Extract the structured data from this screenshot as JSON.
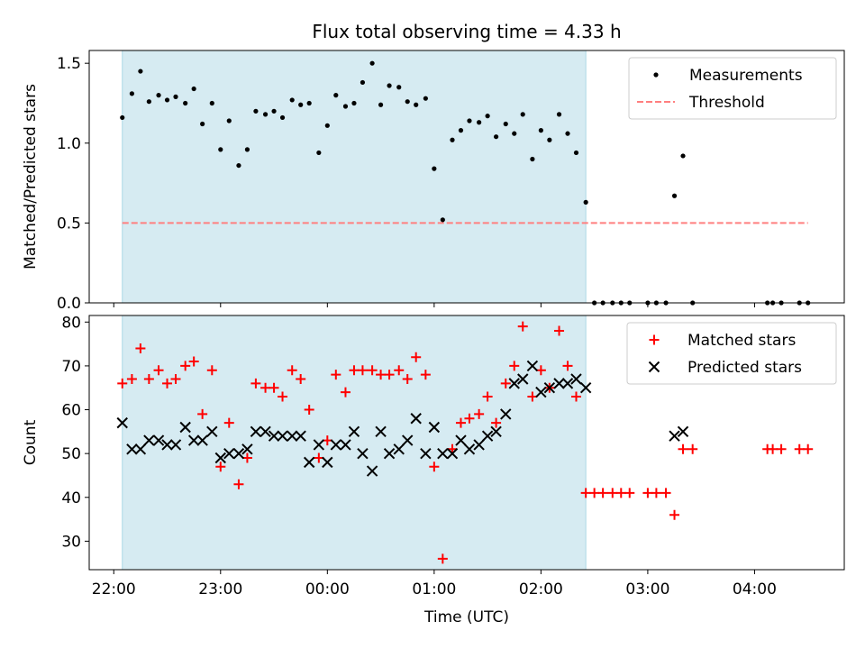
{
  "chart_data": {
    "title": "Flux total observing time = 4.33 h",
    "xlabel": "Time (UTC)",
    "x_ticks": [
      "22:00",
      "23:00",
      "00:00",
      "01:00",
      "02:00",
      "03:00",
      "04:00"
    ],
    "x_tick_hours": [
      22,
      23,
      24,
      25,
      26,
      27,
      28
    ],
    "xlim_hours": [
      21.77,
      28.84
    ],
    "shaded_interval_hours": [
      22.08,
      26.42
    ],
    "shade_color": "#add8e6",
    "panels": [
      {
        "type": "scatter",
        "ylabel": "Matched/Predicted stars",
        "ylim": [
          0,
          1.58
        ],
        "y_ticks": [
          0.0,
          0.5,
          1.0,
          1.5
        ],
        "y_tick_labels": [
          "0.0",
          "0.5",
          "1.0",
          "1.5"
        ],
        "legend_position": "top-right",
        "threshold": {
          "name": "Threshold",
          "value": 0.5,
          "x_range_hours": [
            22.08,
            28.5
          ],
          "color": "#ff7f7f",
          "style": "dashed"
        },
        "series": [
          {
            "name": "Measurements",
            "marker": "dot",
            "color": "#000000",
            "x_hours": [
              22.08,
              22.17,
              22.25,
              22.33,
              22.42,
              22.5,
              22.58,
              22.67,
              22.75,
              22.83,
              22.92,
              23.0,
              23.08,
              23.17,
              23.25,
              23.33,
              23.42,
              23.5,
              23.58,
              23.67,
              23.75,
              23.83,
              23.92,
              24.0,
              24.08,
              24.17,
              24.25,
              24.33,
              24.42,
              24.5,
              24.58,
              24.67,
              24.75,
              24.83,
              24.92,
              25.0,
              25.08,
              25.17,
              25.25,
              25.33,
              25.42,
              25.5,
              25.58,
              25.67,
              25.75,
              25.83,
              25.92,
              26.0,
              26.08,
              26.17,
              26.25,
              26.33,
              26.42,
              26.5,
              26.58,
              26.67,
              26.75,
              26.83,
              27.0,
              27.08,
              27.17,
              27.25,
              27.33,
              27.42,
              28.12,
              28.17,
              28.25,
              28.42,
              28.5
            ],
            "y": [
              1.16,
              1.31,
              1.45,
              1.26,
              1.3,
              1.27,
              1.29,
              1.25,
              1.34,
              1.12,
              1.25,
              0.96,
              1.14,
              0.86,
              0.96,
              1.2,
              1.18,
              1.2,
              1.16,
              1.27,
              1.24,
              1.25,
              0.94,
              1.11,
              1.3,
              1.23,
              1.25,
              1.38,
              1.5,
              1.24,
              1.36,
              1.35,
              1.26,
              1.24,
              1.28,
              0.84,
              0.52,
              1.02,
              1.08,
              1.14,
              1.13,
              1.17,
              1.04,
              1.12,
              1.06,
              1.18,
              0.9,
              1.08,
              1.02,
              1.18,
              1.06,
              0.94,
              0.63,
              0.0,
              0.0,
              0.0,
              0.0,
              0.0,
              0.0,
              0.0,
              0.0,
              0.67,
              0.92,
              0.0,
              0.0,
              0.0,
              0.0,
              0.0,
              0.0
            ]
          }
        ]
      },
      {
        "type": "scatter",
        "ylabel": "Count",
        "ylim": [
          23.5,
          81.5
        ],
        "y_ticks": [
          30,
          40,
          50,
          60,
          70,
          80
        ],
        "y_tick_labels": [
          "30",
          "40",
          "50",
          "60",
          "70",
          "80"
        ],
        "legend_position": "top-right",
        "series": [
          {
            "name": "Matched stars",
            "marker": "plus",
            "color": "#ff0000",
            "x_hours": [
              22.08,
              22.17,
              22.25,
              22.33,
              22.42,
              22.5,
              22.58,
              22.67,
              22.75,
              22.83,
              22.92,
              23.0,
              23.08,
              23.17,
              23.25,
              23.33,
              23.42,
              23.5,
              23.58,
              23.67,
              23.75,
              23.83,
              23.92,
              24.0,
              24.08,
              24.17,
              24.25,
              24.33,
              24.42,
              24.5,
              24.58,
              24.67,
              24.75,
              24.83,
              24.92,
              25.0,
              25.08,
              25.17,
              25.25,
              25.33,
              25.42,
              25.5,
              25.58,
              25.67,
              25.75,
              25.83,
              25.92,
              26.0,
              26.08,
              26.17,
              26.25,
              26.33,
              26.42,
              26.5,
              26.58,
              26.67,
              26.75,
              26.83,
              27.0,
              27.08,
              27.17,
              27.25,
              27.33,
              27.42,
              28.12,
              28.17,
              28.25,
              28.42,
              28.5
            ],
            "y": [
              66,
              67,
              74,
              67,
              69,
              66,
              67,
              70,
              71,
              59,
              69,
              47,
              57,
              43,
              49,
              66,
              65,
              65,
              63,
              69,
              67,
              60,
              49,
              53,
              68,
              64,
              69,
              69,
              69,
              68,
              68,
              69,
              67,
              72,
              68,
              47,
              26,
              51,
              57,
              58,
              59,
              63,
              57,
              66,
              70,
              79,
              63,
              69,
              65,
              78,
              70,
              63,
              41,
              41,
              41,
              41,
              41,
              41,
              41,
              41,
              41,
              36,
              51,
              51,
              51,
              51,
              51,
              51,
              51
            ]
          },
          {
            "name": "Predicted stars",
            "marker": "x",
            "color": "#000000",
            "x_hours": [
              22.08,
              22.17,
              22.25,
              22.33,
              22.42,
              22.5,
              22.58,
              22.67,
              22.75,
              22.83,
              22.92,
              23.0,
              23.08,
              23.17,
              23.25,
              23.33,
              23.42,
              23.5,
              23.58,
              23.67,
              23.75,
              23.83,
              23.92,
              24.0,
              24.08,
              24.17,
              24.25,
              24.33,
              24.42,
              24.5,
              24.58,
              24.67,
              24.75,
              24.83,
              24.92,
              25.0,
              25.08,
              25.17,
              25.25,
              25.33,
              25.42,
              25.5,
              25.58,
              25.67,
              25.75,
              25.83,
              25.92,
              26.0,
              26.08,
              26.17,
              26.25,
              26.33,
              26.42,
              27.25,
              27.33
            ],
            "y": [
              57,
              51,
              51,
              53,
              53,
              52,
              52,
              56,
              53,
              53,
              55,
              49,
              50,
              50,
              51,
              55,
              55,
              54,
              54,
              54,
              54,
              48,
              52,
              48,
              52,
              52,
              55,
              50,
              46,
              55,
              50,
              51,
              53,
              58,
              50,
              56,
              50,
              50,
              53,
              51,
              52,
              54,
              55,
              59,
              66,
              67,
              70,
              64,
              65,
              66,
              66,
              67,
              65,
              54,
              55
            ]
          }
        ]
      }
    ]
  }
}
